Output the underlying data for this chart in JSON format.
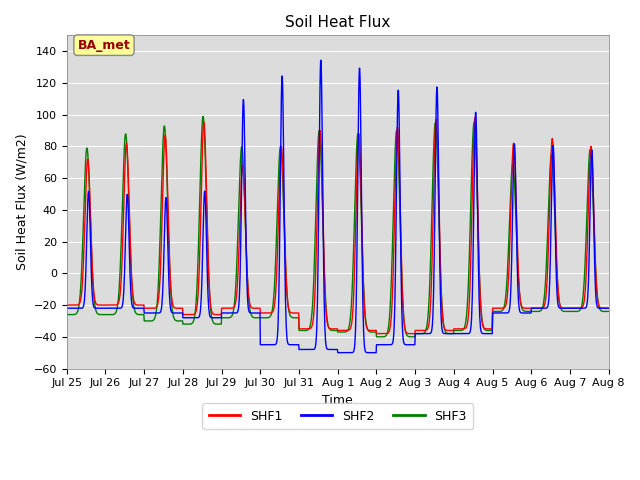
{
  "title": "Soil Heat Flux",
  "ylabel": "Soil Heat Flux (W/m2)",
  "xlabel": "Time",
  "ylim": [
    -60,
    150
  ],
  "yticks": [
    -60,
    -40,
    -20,
    0,
    20,
    40,
    60,
    80,
    100,
    120,
    140
  ],
  "xtick_labels": [
    "Jul 25",
    "Jul 26",
    "Jul 27",
    "Jul 28",
    "Jul 29",
    "Jul 30",
    "Jul 31",
    "Aug 1",
    "Aug 2",
    "Aug 3",
    "Aug 4",
    "Aug 5",
    "Aug 6",
    "Aug 7",
    "Aug 8"
  ],
  "annotation_text": "BA_met",
  "annotation_bg": "#ffff99",
  "annotation_fg": "#990000",
  "line_colors": [
    "red",
    "blue",
    "green"
  ],
  "line_labels": [
    "SHF1",
    "SHF2",
    "SHF3"
  ],
  "bg_color": "#dcdcdc",
  "shf1_peaks": [
    0,
    72,
    82,
    87,
    95,
    68,
    80,
    90,
    88,
    92,
    97,
    98,
    82,
    85,
    80
  ],
  "shf2_peaks": [
    0,
    52,
    50,
    48,
    52,
    110,
    125,
    135,
    130,
    116,
    118,
    102,
    82,
    81,
    78
  ],
  "shf3_peaks": [
    0,
    79,
    88,
    93,
    99,
    80,
    80,
    90,
    88,
    90,
    95,
    95,
    69,
    75,
    78
  ],
  "shf1_troughs": [
    -20,
    -20,
    -22,
    -26,
    -22,
    -25,
    -35,
    -36,
    -38,
    -36,
    -35,
    -22,
    -22,
    -22,
    -25
  ],
  "shf2_troughs": [
    -22,
    -22,
    -25,
    -28,
    -25,
    -45,
    -48,
    -50,
    -45,
    -38,
    -38,
    -25,
    -22,
    -22,
    -28
  ],
  "shf3_troughs": [
    -26,
    -26,
    -30,
    -32,
    -28,
    -28,
    -36,
    -37,
    -40,
    -38,
    -36,
    -24,
    -24,
    -24,
    -28
  ]
}
